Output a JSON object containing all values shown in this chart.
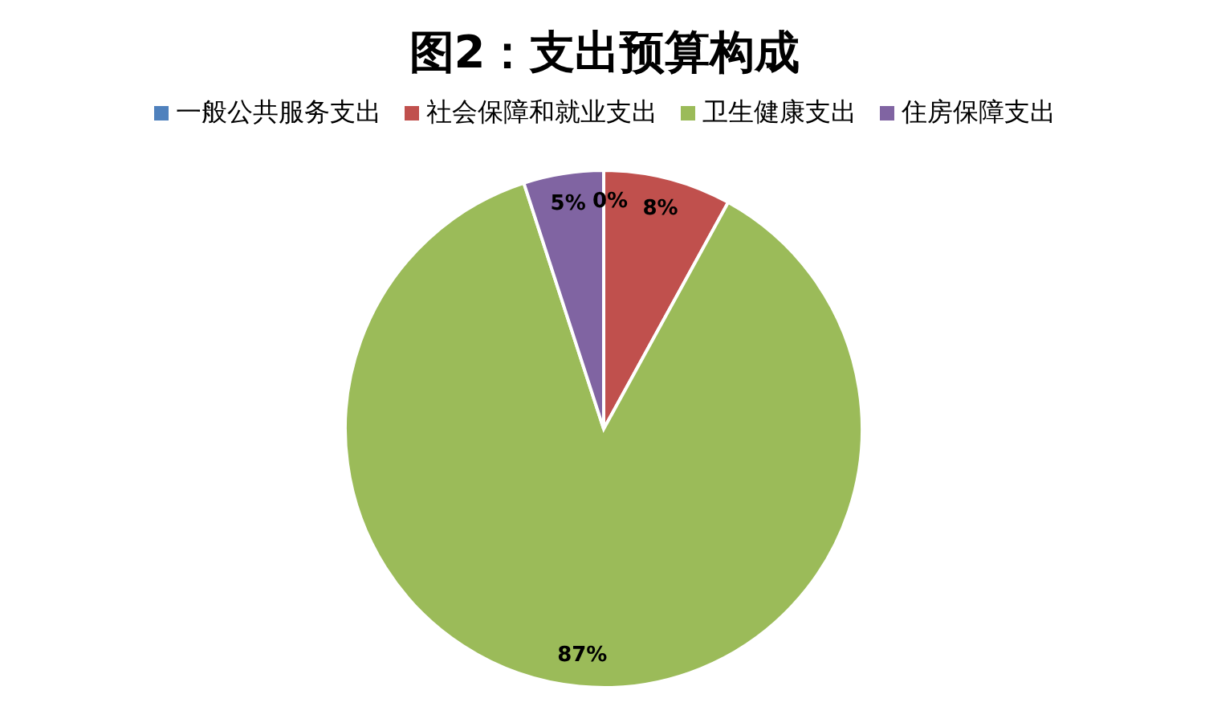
{
  "chart_data": {
    "type": "pie",
    "title": "图2：支出预算构成",
    "categories": [
      "一般公共服务支出",
      "社会保障和就业支出",
      "卫生健康支出",
      "住房保障支出"
    ],
    "values": [
      0,
      8,
      87,
      5
    ],
    "colors": [
      "#4f81bd",
      "#c0504d",
      "#9bbb59",
      "#8064a2"
    ],
    "value_labels": [
      "0%",
      "8%",
      "87%",
      "5%"
    ],
    "legend": "top"
  }
}
